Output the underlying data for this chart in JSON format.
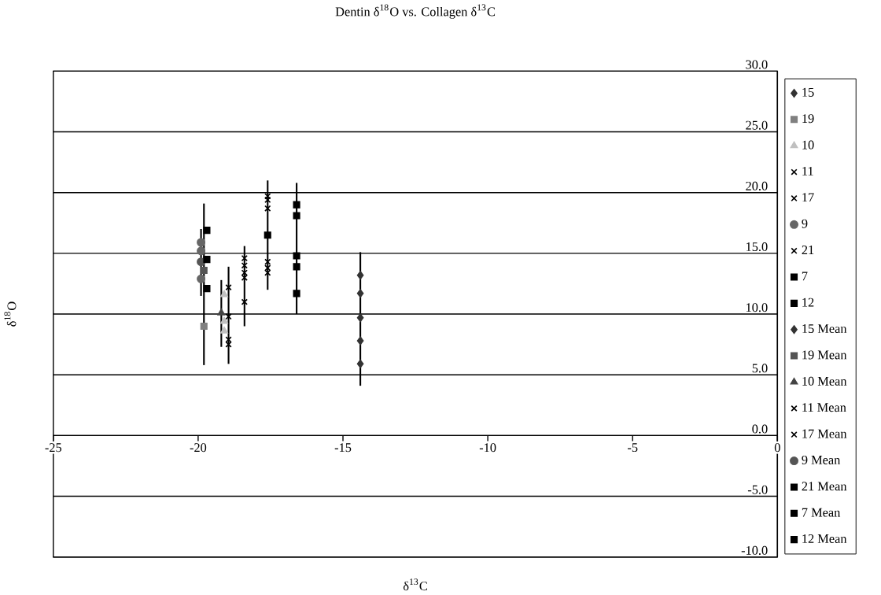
{
  "chart_data": {
    "type": "scatter",
    "title": "Dentin δ$^{18}$O vs. Collagen δ$^{13}$C",
    "xlabel": "δ$^{13}$C",
    "ylabel": "δ$^{18}$O",
    "xlim": [
      -25,
      0
    ],
    "xticks": [
      -25,
      -20,
      -15,
      -10,
      -5,
      0
    ],
    "ylim": [
      -10,
      30
    ],
    "yticks": [
      {
        "value": -10,
        "label": "-10.0"
      },
      {
        "value": -5,
        "label": "-5.0"
      },
      {
        "value": 0,
        "label": "0.0"
      },
      {
        "value": 5,
        "label": "5.0"
      },
      {
        "value": 10,
        "label": "10.0"
      },
      {
        "value": 15,
        "label": "15.0"
      },
      {
        "value": 20,
        "label": "20.0"
      },
      {
        "value": 25,
        "label": "25.0"
      },
      {
        "value": 30,
        "label": "30.0"
      }
    ],
    "grid": "y",
    "legend": "right",
    "series": [
      {
        "name": "15",
        "color": "#333333",
        "marker": "diamond",
        "x": [
          -14.4,
          -14.4,
          -14.4,
          -14.4
        ],
        "values": [
          13.2,
          11.7,
          7.8,
          5.9
        ]
      },
      {
        "name": "19",
        "color": "#808080",
        "marker": "square",
        "x": [
          -19.8
        ],
        "values": [
          9.0
        ]
      },
      {
        "name": "10",
        "color": "#c0c0c0",
        "marker": "triangle",
        "x": [
          -19.1,
          -19.1,
          -19.1
        ],
        "values": [
          11.6,
          9.4,
          8.6
        ]
      },
      {
        "name": "11",
        "color": "#000000",
        "marker": "cross",
        "x": [
          -18.95,
          -18.95,
          -18.95
        ],
        "values": [
          12.2,
          7.9,
          7.5
        ]
      },
      {
        "name": "17",
        "color": "#000000",
        "marker": "cross",
        "x": [
          -18.4,
          -18.4,
          -18.4,
          -18.4
        ],
        "values": [
          14.6,
          14.0,
          13.4,
          11.0
        ]
      },
      {
        "name": "9",
        "color": "#666666",
        "marker": "circle",
        "x": [
          -19.9,
          -19.9,
          -19.9
        ],
        "values": [
          15.9,
          15.2,
          12.9
        ]
      },
      {
        "name": "21",
        "color": "#000000",
        "marker": "cross",
        "x": [
          -17.6,
          -17.6,
          -17.6,
          -17.6,
          -17.6,
          -17.6
        ],
        "values": [
          19.7,
          19.4,
          18.7,
          14.3,
          13.8,
          13.4
        ]
      },
      {
        "name": "7",
        "color": "#000000",
        "marker": "square",
        "x": [
          -19.7,
          -19.7
        ],
        "values": [
          16.9,
          12.1
        ]
      },
      {
        "name": "12",
        "color": "#000000",
        "marker": "square",
        "x": [
          -16.6,
          -16.6,
          -16.6,
          -16.6
        ],
        "values": [
          19.0,
          18.1,
          13.9,
          11.7
        ]
      },
      {
        "name": "15 Mean",
        "color": "#333333",
        "marker": "diamond",
        "x": [
          -14.4
        ],
        "values": [
          9.7
        ],
        "errors": [
          [
            4.1,
            15.1
          ]
        ]
      },
      {
        "name": "19 Mean",
        "color": "#555555",
        "marker": "square",
        "x": [
          -19.8
        ],
        "values": [
          13.6
        ],
        "errors": [
          [
            5.8,
            19.1
          ]
        ]
      },
      {
        "name": "10 Mean",
        "color": "#444444",
        "marker": "triangle",
        "x": [
          -19.2
        ],
        "values": [
          10.1
        ],
        "errors": [
          [
            7.3,
            12.8
          ]
        ]
      },
      {
        "name": "11 Mean",
        "color": "#000000",
        "marker": "cross",
        "x": [
          -18.95
        ],
        "values": [
          9.8
        ],
        "errors": [
          [
            5.9,
            13.9
          ]
        ]
      },
      {
        "name": "17 Mean",
        "color": "#000000",
        "marker": "cross",
        "x": [
          -18.4
        ],
        "values": [
          13.0
        ],
        "errors": [
          [
            9.0,
            15.6
          ]
        ]
      },
      {
        "name": "9 Mean",
        "color": "#555555",
        "marker": "circle",
        "x": [
          -19.9
        ],
        "values": [
          14.3
        ],
        "errors": [
          [
            11.5,
            17.0
          ]
        ]
      },
      {
        "name": "21 Mean",
        "color": "#000000",
        "marker": "square",
        "x": [
          -17.6
        ],
        "values": [
          16.5
        ],
        "errors": [
          [
            12.0,
            21.0
          ]
        ]
      },
      {
        "name": "7 Mean",
        "color": "#000000",
        "marker": "square",
        "x": [
          -19.7
        ],
        "values": [
          14.5
        ]
      },
      {
        "name": "12 Mean",
        "color": "#000000",
        "marker": "square",
        "x": [
          -16.6
        ],
        "values": [
          14.8
        ],
        "errors": [
          [
            10.0,
            20.8
          ]
        ]
      }
    ]
  }
}
